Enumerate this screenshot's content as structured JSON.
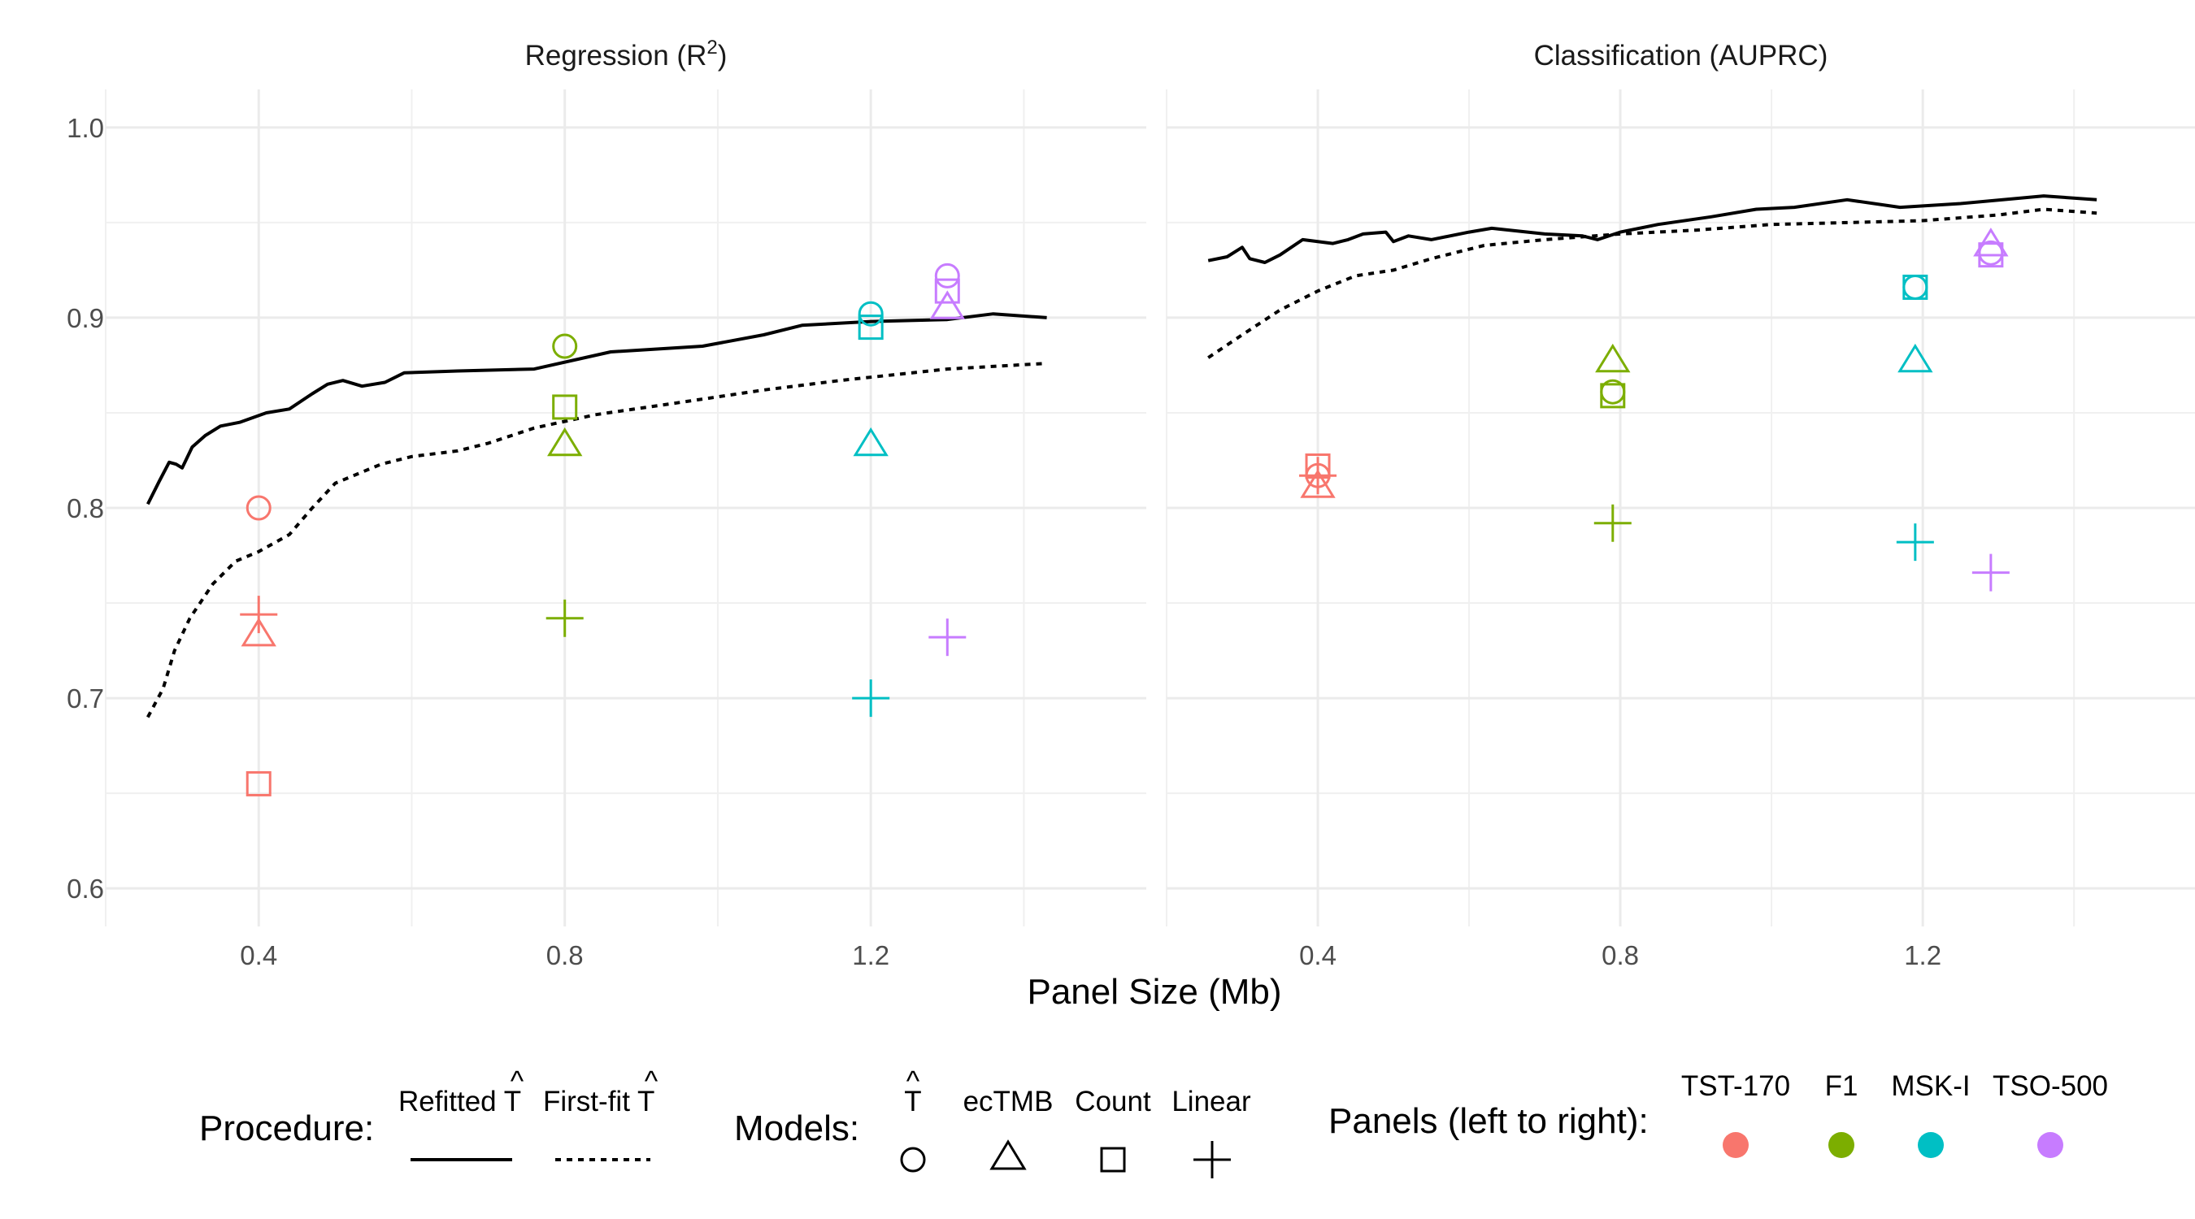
{
  "figure": {
    "xlabel": "Panel Size (Mb)",
    "colors": {
      "TST-170": "#F8766D",
      "F1": "#7CAE00",
      "MSK-I": "#00BFC4",
      "TSO-500": "#C77CFF"
    }
  },
  "legend": {
    "procedure": {
      "title": "Procedure:",
      "items": [
        {
          "label": "Refitted",
          "hat": "T",
          "line": "solid"
        },
        {
          "label": "First-fit",
          "hat": "T",
          "line": "dotted"
        }
      ]
    },
    "models": {
      "title": "Models:",
      "items": [
        {
          "label": "",
          "hat": "T",
          "shape": "circle"
        },
        {
          "label": "ecTMB",
          "shape": "triangle"
        },
        {
          "label": "Count",
          "shape": "square"
        },
        {
          "label": "Linear",
          "shape": "plus"
        }
      ]
    },
    "panels": {
      "title": "Panels (left to right):",
      "items": [
        {
          "label": "TST-170",
          "color": "#F8766D"
        },
        {
          "label": "F1",
          "color": "#7CAE00"
        },
        {
          "label": "MSK-I",
          "color": "#00BFC4"
        },
        {
          "label": "TSO-500",
          "color": "#C77CFF"
        }
      ]
    }
  },
  "chart_data": [
    {
      "type": "line",
      "title": "Regression (R²)",
      "title_main": "Regression",
      "title_paren": "R",
      "title_sup": "2",
      "xlabel": "Panel Size (Mb)",
      "ylabel": "",
      "xlim": [
        0.2,
        1.56
      ],
      "ylim": [
        0.58,
        1.02
      ],
      "x_ticks": [
        "0.4",
        "0.8",
        "1.2"
      ],
      "y_ticks": [
        "0.6",
        "0.7",
        "0.8",
        "0.9",
        "1.0"
      ],
      "grid": true,
      "series": [
        {
          "name": "Refitted",
          "style": "solid",
          "points": [
            [
              0.255,
              0.802
            ],
            [
              0.27,
              0.814
            ],
            [
              0.283,
              0.824
            ],
            [
              0.292,
              0.823
            ],
            [
              0.3,
              0.821
            ],
            [
              0.313,
              0.832
            ],
            [
              0.33,
              0.838
            ],
            [
              0.35,
              0.843
            ],
            [
              0.375,
              0.845
            ],
            [
              0.41,
              0.85
            ],
            [
              0.44,
              0.852
            ],
            [
              0.47,
              0.86
            ],
            [
              0.49,
              0.865
            ],
            [
              0.51,
              0.867
            ],
            [
              0.535,
              0.864
            ],
            [
              0.565,
              0.866
            ],
            [
              0.59,
              0.871
            ],
            [
              0.66,
              0.872
            ],
            [
              0.76,
              0.873
            ],
            [
              0.86,
              0.882
            ],
            [
              0.98,
              0.885
            ],
            [
              1.06,
              0.891
            ],
            [
              1.11,
              0.896
            ],
            [
              1.2,
              0.898
            ],
            [
              1.3,
              0.899
            ],
            [
              1.36,
              0.902
            ],
            [
              1.43,
              0.9
            ]
          ]
        },
        {
          "name": "First-fit",
          "style": "dotted",
          "points": [
            [
              0.255,
              0.69
            ],
            [
              0.275,
              0.705
            ],
            [
              0.29,
              0.725
            ],
            [
              0.31,
              0.742
            ],
            [
              0.34,
              0.76
            ],
            [
              0.37,
              0.772
            ],
            [
              0.4,
              0.777
            ],
            [
              0.44,
              0.786
            ],
            [
              0.47,
              0.8
            ],
            [
              0.5,
              0.813
            ],
            [
              0.56,
              0.823
            ],
            [
              0.6,
              0.827
            ],
            [
              0.66,
              0.83
            ],
            [
              0.7,
              0.834
            ],
            [
              0.76,
              0.842
            ],
            [
              0.84,
              0.849
            ],
            [
              0.96,
              0.856
            ],
            [
              1.06,
              0.862
            ],
            [
              1.16,
              0.867
            ],
            [
              1.3,
              0.873
            ],
            [
              1.43,
              0.876
            ]
          ]
        }
      ],
      "points": [
        {
          "panel": "TST-170",
          "x": 0.4,
          "model": "circle",
          "y": 0.8
        },
        {
          "panel": "TST-170",
          "x": 0.4,
          "model": "triangle",
          "y": 0.733
        },
        {
          "panel": "TST-170",
          "x": 0.4,
          "model": "square",
          "y": 0.655
        },
        {
          "panel": "TST-170",
          "x": 0.4,
          "model": "plus",
          "y": 0.744
        },
        {
          "panel": "F1",
          "x": 0.8,
          "model": "circle",
          "y": 0.885
        },
        {
          "panel": "F1",
          "x": 0.8,
          "model": "triangle",
          "y": 0.833
        },
        {
          "panel": "F1",
          "x": 0.8,
          "model": "square",
          "y": 0.853
        },
        {
          "panel": "F1",
          "x": 0.8,
          "model": "plus",
          "y": 0.742
        },
        {
          "panel": "MSK-I",
          "x": 1.2,
          "model": "circle",
          "y": 0.902
        },
        {
          "panel": "MSK-I",
          "x": 1.2,
          "model": "triangle",
          "y": 0.833
        },
        {
          "panel": "MSK-I",
          "x": 1.2,
          "model": "square",
          "y": 0.895
        },
        {
          "panel": "MSK-I",
          "x": 1.2,
          "model": "plus",
          "y": 0.7
        },
        {
          "panel": "TSO-500",
          "x": 1.3,
          "model": "circle",
          "y": 0.922
        },
        {
          "panel": "TSO-500",
          "x": 1.3,
          "model": "triangle",
          "y": 0.905
        },
        {
          "panel": "TSO-500",
          "x": 1.3,
          "model": "square",
          "y": 0.914
        },
        {
          "panel": "TSO-500",
          "x": 1.3,
          "model": "plus",
          "y": 0.732
        }
      ]
    },
    {
      "type": "line",
      "title": "Classification (AUPRC)",
      "title_main": "Classification",
      "title_paren": "AUPRC",
      "title_sup": "",
      "xlabel": "Panel Size (Mb)",
      "ylabel": "",
      "xlim": [
        0.2,
        1.56
      ],
      "ylim": [
        0.58,
        1.02
      ],
      "x_ticks": [
        "0.4",
        "0.8",
        "1.2"
      ],
      "y_ticks": [
        "0.6",
        "0.7",
        "0.8",
        "0.9",
        "1.0"
      ],
      "grid": true,
      "series": [
        {
          "name": "Refitted",
          "style": "solid",
          "points": [
            [
              0.255,
              0.93
            ],
            [
              0.28,
              0.932
            ],
            [
              0.3,
              0.937
            ],
            [
              0.31,
              0.931
            ],
            [
              0.33,
              0.929
            ],
            [
              0.35,
              0.933
            ],
            [
              0.38,
              0.941
            ],
            [
              0.42,
              0.939
            ],
            [
              0.44,
              0.941
            ],
            [
              0.46,
              0.944
            ],
            [
              0.49,
              0.945
            ],
            [
              0.5,
              0.94
            ],
            [
              0.52,
              0.943
            ],
            [
              0.55,
              0.941
            ],
            [
              0.6,
              0.945
            ],
            [
              0.63,
              0.947
            ],
            [
              0.7,
              0.944
            ],
            [
              0.75,
              0.943
            ],
            [
              0.77,
              0.941
            ],
            [
              0.8,
              0.945
            ],
            [
              0.85,
              0.949
            ],
            [
              0.92,
              0.953
            ],
            [
              0.98,
              0.957
            ],
            [
              1.03,
              0.958
            ],
            [
              1.1,
              0.962
            ],
            [
              1.17,
              0.958
            ],
            [
              1.25,
              0.96
            ],
            [
              1.36,
              0.964
            ],
            [
              1.43,
              0.962
            ]
          ]
        },
        {
          "name": "First-fit",
          "style": "dotted",
          "points": [
            [
              0.255,
              0.879
            ],
            [
              0.3,
              0.891
            ],
            [
              0.35,
              0.904
            ],
            [
              0.4,
              0.914
            ],
            [
              0.45,
              0.922
            ],
            [
              0.5,
              0.925
            ],
            [
              0.55,
              0.931
            ],
            [
              0.62,
              0.938
            ],
            [
              0.7,
              0.941
            ],
            [
              0.8,
              0.944
            ],
            [
              0.9,
              0.946
            ],
            [
              1.0,
              0.949
            ],
            [
              1.1,
              0.95
            ],
            [
              1.2,
              0.951
            ],
            [
              1.3,
              0.954
            ],
            [
              1.36,
              0.957
            ],
            [
              1.43,
              0.955
            ]
          ]
        }
      ],
      "points": [
        {
          "panel": "TST-170",
          "x": 0.4,
          "model": "circle",
          "y": 0.817
        },
        {
          "panel": "TST-170",
          "x": 0.4,
          "model": "triangle",
          "y": 0.811
        },
        {
          "panel": "TST-170",
          "x": 0.4,
          "model": "square",
          "y": 0.822
        },
        {
          "panel": "TST-170",
          "x": 0.4,
          "model": "plus",
          "y": 0.817
        },
        {
          "panel": "F1",
          "x": 0.79,
          "model": "circle",
          "y": 0.861
        },
        {
          "panel": "F1",
          "x": 0.79,
          "model": "triangle",
          "y": 0.877
        },
        {
          "panel": "F1",
          "x": 0.79,
          "model": "square",
          "y": 0.859
        },
        {
          "panel": "F1",
          "x": 0.79,
          "model": "plus",
          "y": 0.792
        },
        {
          "panel": "MSK-I",
          "x": 1.19,
          "model": "circle",
          "y": 0.916
        },
        {
          "panel": "MSK-I",
          "x": 1.19,
          "model": "triangle",
          "y": 0.877
        },
        {
          "panel": "MSK-I",
          "x": 1.19,
          "model": "square",
          "y": 0.916
        },
        {
          "panel": "MSK-I",
          "x": 1.19,
          "model": "plus",
          "y": 0.782
        },
        {
          "panel": "TSO-500",
          "x": 1.29,
          "model": "circle",
          "y": 0.934
        },
        {
          "panel": "TSO-500",
          "x": 1.29,
          "model": "triangle",
          "y": 0.938
        },
        {
          "panel": "TSO-500",
          "x": 1.29,
          "model": "square",
          "y": 0.933
        },
        {
          "panel": "TSO-500",
          "x": 1.29,
          "model": "plus",
          "y": 0.766
        }
      ]
    }
  ]
}
